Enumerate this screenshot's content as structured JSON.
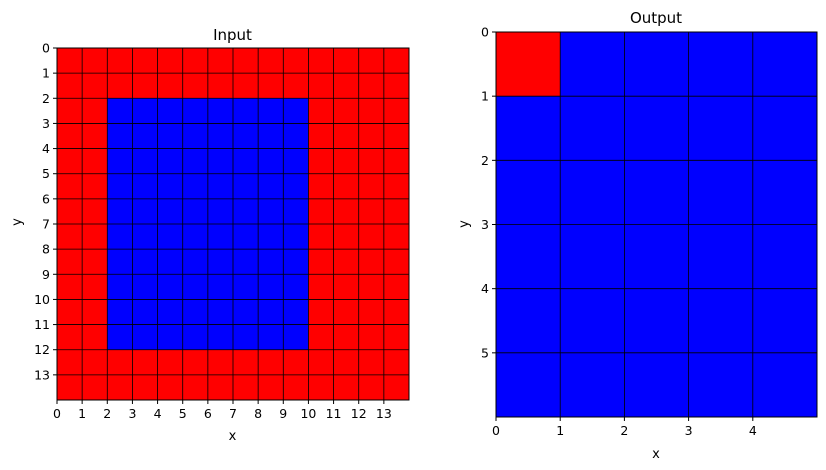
{
  "chart_data": [
    {
      "type": "heatmap",
      "title": "Input",
      "xlabel": "x",
      "ylabel": "y",
      "xlim": [
        0,
        14
      ],
      "ylim": [
        14,
        0
      ],
      "xticks": [
        "0",
        "1",
        "2",
        "3",
        "4",
        "5",
        "6",
        "7",
        "8",
        "9",
        "10",
        "11",
        "12",
        "13"
      ],
      "yticks": [
        "0",
        "1",
        "2",
        "3",
        "4",
        "5",
        "6",
        "7",
        "8",
        "9",
        "10",
        "11",
        "12",
        "13"
      ],
      "grid": true,
      "colors": {
        "0": "#ff0000",
        "1": "#0000ff"
      },
      "grid_values": [
        [
          0,
          0,
          0,
          0,
          0,
          0,
          0,
          0,
          0,
          0,
          0,
          0,
          0,
          0
        ],
        [
          0,
          0,
          0,
          0,
          0,
          0,
          0,
          0,
          0,
          0,
          0,
          0,
          0,
          0
        ],
        [
          0,
          0,
          1,
          1,
          1,
          1,
          1,
          1,
          1,
          1,
          0,
          0,
          0,
          0
        ],
        [
          0,
          0,
          1,
          1,
          1,
          1,
          1,
          1,
          1,
          1,
          0,
          0,
          0,
          0
        ],
        [
          0,
          0,
          1,
          1,
          1,
          1,
          1,
          1,
          1,
          1,
          0,
          0,
          0,
          0
        ],
        [
          0,
          0,
          1,
          1,
          1,
          1,
          1,
          1,
          1,
          1,
          0,
          0,
          0,
          0
        ],
        [
          0,
          0,
          1,
          1,
          1,
          1,
          1,
          1,
          1,
          1,
          0,
          0,
          0,
          0
        ],
        [
          0,
          0,
          1,
          1,
          1,
          1,
          1,
          1,
          1,
          1,
          0,
          0,
          0,
          0
        ],
        [
          0,
          0,
          1,
          1,
          1,
          1,
          1,
          1,
          1,
          1,
          0,
          0,
          0,
          0
        ],
        [
          0,
          0,
          1,
          1,
          1,
          1,
          1,
          1,
          1,
          1,
          0,
          0,
          0,
          0
        ],
        [
          0,
          0,
          1,
          1,
          1,
          1,
          1,
          1,
          1,
          1,
          0,
          0,
          0,
          0
        ],
        [
          0,
          0,
          1,
          1,
          1,
          1,
          1,
          1,
          1,
          1,
          0,
          0,
          0,
          0
        ],
        [
          0,
          0,
          0,
          0,
          0,
          0,
          0,
          0,
          0,
          0,
          0,
          0,
          0,
          0
        ],
        [
          0,
          0,
          0,
          0,
          0,
          0,
          0,
          0,
          0,
          0,
          0,
          0,
          0,
          0
        ]
      ]
    },
    {
      "type": "heatmap",
      "title": "Output",
      "xlabel": "x",
      "ylabel": "y",
      "xlim": [
        0,
        5
      ],
      "ylim": [
        6,
        0
      ],
      "xticks": [
        "0",
        "1",
        "2",
        "3",
        "4"
      ],
      "yticks": [
        "0",
        "1",
        "2",
        "3",
        "4",
        "5"
      ],
      "grid": true,
      "colors": {
        "0": "#ff0000",
        "1": "#0000ff"
      },
      "grid_values": [
        [
          0,
          1,
          1,
          1,
          1
        ],
        [
          1,
          1,
          1,
          1,
          1
        ],
        [
          1,
          1,
          1,
          1,
          1
        ],
        [
          1,
          1,
          1,
          1,
          1
        ],
        [
          1,
          1,
          1,
          1,
          1
        ],
        [
          1,
          1,
          1,
          1,
          1
        ]
      ]
    }
  ]
}
